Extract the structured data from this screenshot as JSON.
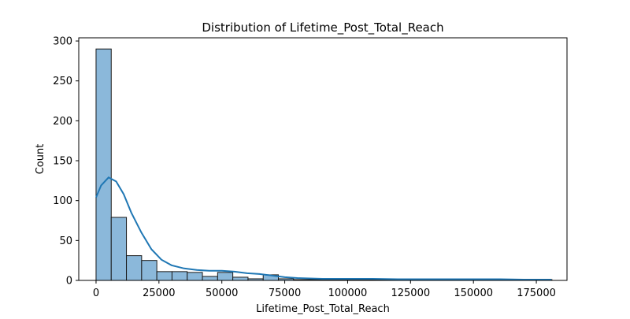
{
  "chart_data": {
    "type": "bar",
    "subtype": "histogram_with_kde",
    "title": "Distribution of Lifetime_Post_Total_Reach",
    "xlabel": "Lifetime_Post_Total_Reach",
    "ylabel": "Count",
    "xlim": [
      -6875,
      187188
    ],
    "ylim": [
      0,
      304
    ],
    "xticks": [
      0,
      25000,
      50000,
      75000,
      100000,
      125000,
      150000,
      175000
    ],
    "xtick_labels": [
      "0",
      "25000",
      "50000",
      "75000",
      "100000",
      "125000",
      "150000",
      "175000"
    ],
    "yticks": [
      0,
      50,
      100,
      150,
      200,
      250,
      300
    ],
    "ytick_labels": [
      "0",
      "50",
      "100",
      "150",
      "200",
      "250",
      "300"
    ],
    "bin_start": 0,
    "bin_width": 6040,
    "values": [
      290,
      79,
      31,
      25,
      11,
      11,
      10,
      5,
      10,
      4,
      2,
      7,
      2,
      1,
      1,
      1,
      1,
      1,
      1,
      1,
      1,
      1,
      1,
      0,
      1,
      0,
      1,
      0,
      0,
      1
    ],
    "kde": {
      "x": [
        0,
        2000,
        5000,
        8000,
        11000,
        14000,
        18000,
        22000,
        26000,
        30000,
        35000,
        40000,
        45000,
        50000,
        55000,
        60000,
        65000,
        70000,
        75000,
        80000,
        90000,
        100000,
        110000,
        120000,
        130000,
        140000,
        150000,
        160000,
        170000,
        181000
      ],
      "y": [
        104,
        119,
        129,
        124,
        108,
        85,
        60,
        39,
        26,
        19,
        15,
        13,
        12,
        12,
        11,
        9,
        8,
        6,
        4,
        3,
        2,
        2,
        2,
        1.5,
        1.5,
        1.5,
        1.5,
        1.5,
        1,
        1
      ]
    },
    "bar_color": "#8bb8da",
    "bar_edge_color": "#1a1a1a",
    "line_color": "#1f77b4",
    "grid": false,
    "legend": "none"
  }
}
